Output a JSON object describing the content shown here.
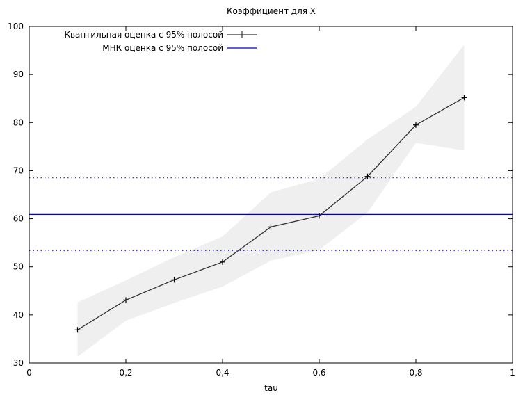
{
  "chart_data": {
    "type": "line",
    "title": "Коэффициент для X",
    "xlabel": "tau",
    "ylabel": "",
    "xlim": [
      0,
      1
    ],
    "ylim": [
      30,
      100
    ],
    "x_ticks": [
      "0",
      "0,2",
      "0,4",
      "0,6",
      "0,8",
      "1"
    ],
    "x_tick_values": [
      0,
      0.2,
      0.4,
      0.6,
      0.8,
      1
    ],
    "y_ticks": [
      "30",
      "40",
      "50",
      "60",
      "70",
      "80",
      "90",
      "100"
    ],
    "y_tick_values": [
      30,
      40,
      50,
      60,
      70,
      80,
      90,
      100
    ],
    "grid": false,
    "legend_position": "top-left",
    "series": [
      {
        "name": "Квантильная оценка с 95% полосой",
        "marker": "plus",
        "color": "#333333",
        "x": [
          0.1,
          0.2,
          0.3,
          0.4,
          0.5,
          0.6,
          0.7,
          0.8,
          0.9
        ],
        "y": [
          36.9,
          43.1,
          47.3,
          51.0,
          58.3,
          60.6,
          68.8,
          79.5,
          85.2
        ],
        "band_lower": [
          31.3,
          38.8,
          42.5,
          45.9,
          51.3,
          53.5,
          61.3,
          75.8,
          74.2
        ],
        "band_upper": [
          42.6,
          47.2,
          52.0,
          56.3,
          65.5,
          68.3,
          76.5,
          83.3,
          96.2
        ],
        "band_color": "#efefef"
      },
      {
        "name": "МНК оценка с 95% полосой",
        "color": "#0000c8",
        "value": 60.9,
        "band_lower": 53.4,
        "band_upper": 68.5
      }
    ]
  }
}
